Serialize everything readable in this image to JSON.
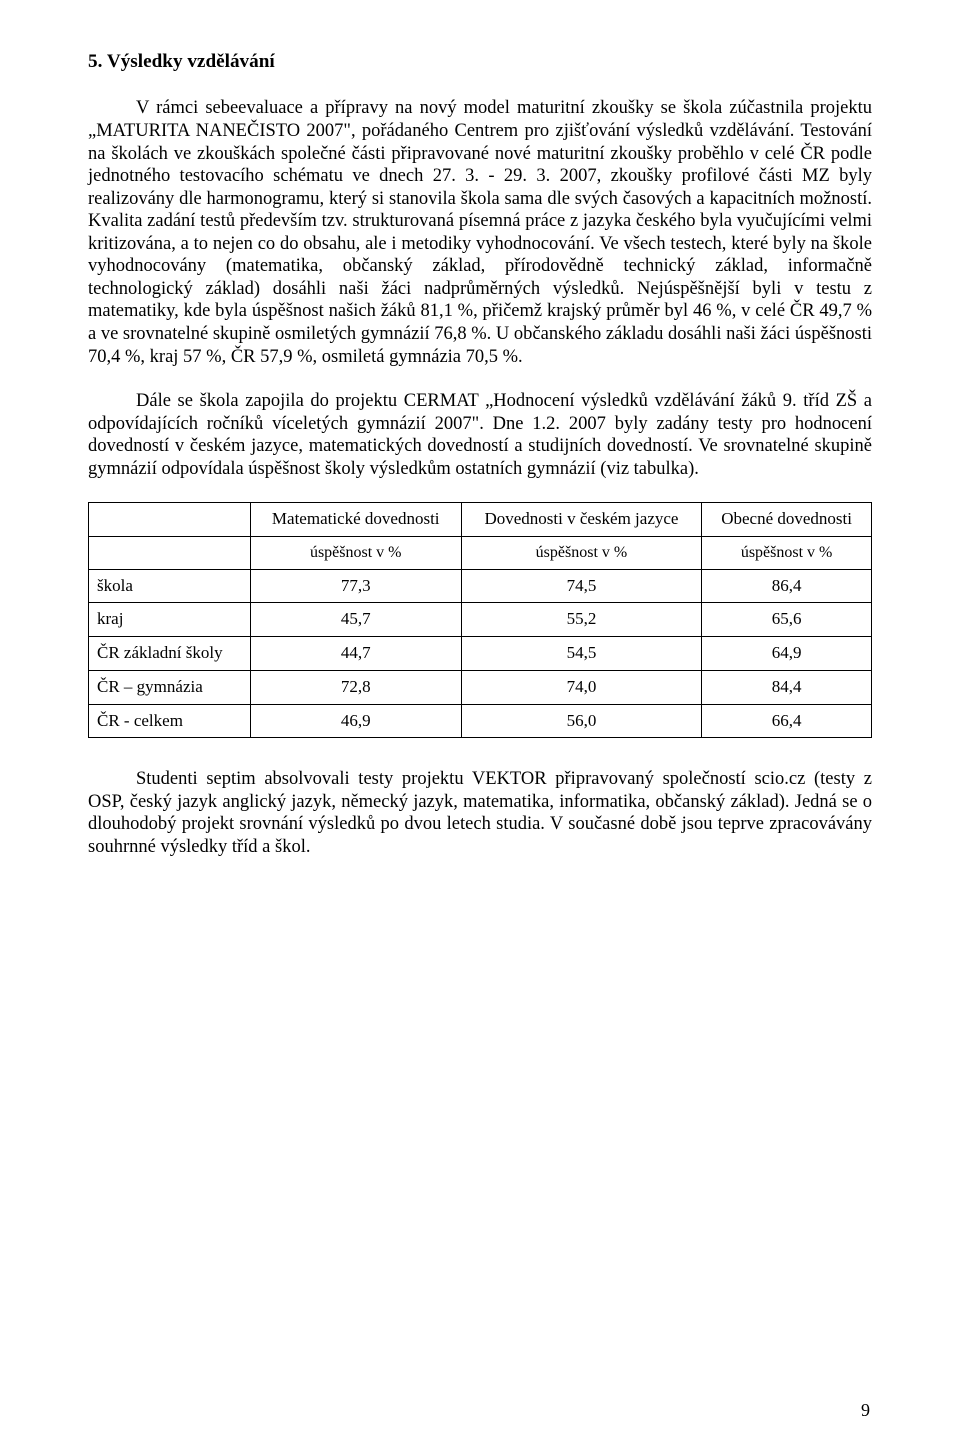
{
  "heading": "5. Výsledky vzdělávání",
  "para1": "V rámci sebeevaluace a přípravy na nový model maturitní zkoušky se škola zúčastnila projektu „MATURITA NANEČISTO 2007\", pořádaného Centrem pro zjišťování výsledků vzdělávání. Testování na školách ve zkouškách společné části připravované nové maturitní zkoušky proběhlo v celé ČR podle jednotného testovacího schématu ve dnech 27. 3. - 29. 3. 2007, zkoušky profilové části MZ byly realizovány dle harmonogramu, který si stanovila škola sama dle svých časových a kapacitních možností. Kvalita zadání testů především tzv. strukturovaná písemná práce z jazyka českého byla vyučujícími velmi kritizována, a to nejen co do obsahu, ale i metodiky vyhodnocování. Ve všech testech, které byly na škole vyhodnocovány (matematika, občanský základ, přírodovědně technický základ, informačně technologický základ) dosáhli naši žáci nadprůměrných výsledků. Nejúspěšnější byli v testu z matematiky, kde byla úspěšnost našich žáků 81,1 %, přičemž krajský průměr byl 46 %, v celé ČR 49,7 % a ve srovnatelné skupině osmiletých gymnázií 76,8 %. U občanského základu dosáhli naši žáci úspěšnosti 70,4 %, kraj 57 %, ČR 57,9 %, osmiletá gymnázia 70,5 %.",
  "para2": "Dále se škola zapojila do projektu CERMAT „Hodnocení výsledků vzdělávání žáků 9. tříd ZŠ a odpovídajících ročníků víceletých gymnázií 2007\". Dne 1.2. 2007 byly zadány testy pro hodnocení dovedností v českém jazyce, matematických dovedností a studijních dovedností. Ve srovnatelné skupině gymnázií odpovídala úspěšnost školy výsledkům ostatních gymnázií (viz tabulka).",
  "table": {
    "columns": [
      "Matematické dovednosti",
      "Dovednosti v českém jazyce",
      "Obecné dovednosti"
    ],
    "subheader": "úspěšnost v %",
    "rows": [
      {
        "label": "škola",
        "vals": [
          "77,3",
          "74,5",
          "86,4"
        ]
      },
      {
        "label": "kraj",
        "vals": [
          "45,7",
          "55,2",
          "65,6"
        ]
      },
      {
        "label": "ČR základní školy",
        "vals": [
          "44,7",
          "54,5",
          "64,9"
        ]
      },
      {
        "label": "ČR – gymnázia",
        "vals": [
          "72,8",
          "74,0",
          "84,4"
        ]
      },
      {
        "label": "ČR - celkem",
        "vals": [
          "46,9",
          "56,0",
          "66,4"
        ]
      }
    ]
  },
  "para3": "Studenti septim absolvovali testy projektu VEKTOR připravovaný společností scio.cz (testy z OSP, český jazyk anglický jazyk, německý jazyk, matematika, informatika, občanský základ). Jedná se o dlouhodobý projekt srovnání výsledků po dvou letech studia. V současné době jsou teprve zpracovávány souhrnné výsledky tříd a škol.",
  "pageNumber": "9"
}
